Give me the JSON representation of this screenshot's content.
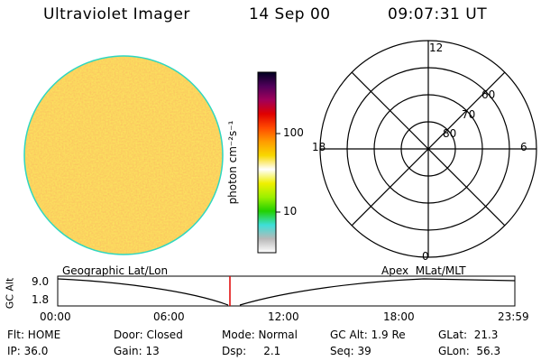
{
  "header": {
    "instrument": "Ultraviolet Imager",
    "date": "14 Sep 00",
    "time": "09:07:31 UT"
  },
  "colorbar": {
    "unit_label": "photon cm⁻²s⁻¹",
    "tick_100": "100",
    "tick_10": "10",
    "stops": [
      "#ffffff",
      "#b8b8b8",
      "#3ddfd8",
      "#22d000",
      "#9cf000",
      "#f0f000",
      "#ffffff",
      "#f8d800",
      "#ff9c00",
      "#ff4a00",
      "#e00000",
      "#a0005a",
      "#50005a",
      "#000020"
    ]
  },
  "image": {
    "base_color": "#f5d23c",
    "edge_color": "#2fd7c0"
  },
  "polar_plot": {
    "mlt_labels": {
      "top": "12",
      "left": "18",
      "right": "6",
      "bottom": "0"
    },
    "lat_labels": [
      "60",
      "70",
      "80"
    ]
  },
  "timeline": {
    "left_label": "Geographic Lat/Lon",
    "right_label": "Apex  MLat/MLT",
    "axis_title": "GC Alt",
    "y_ticks": [
      "9.0",
      "1.8"
    ],
    "x_ticks": [
      "00:00",
      "06:00",
      "12:00",
      "18:00",
      "23:59"
    ],
    "marker_color": "#e00000"
  },
  "info": {
    "filter": "Flt: HOME",
    "door": "Door: Closed",
    "mode": "Mode: Normal",
    "gc_alt": "GC Alt: 1.9 Re",
    "glat": "GLat:  21.3",
    "ip": "IP: 36.0",
    "gain": "Gain: 13",
    "dsp": "Dsp:     2.1",
    "seq": "Seq: 39",
    "glon": "GLon:  56.3"
  }
}
